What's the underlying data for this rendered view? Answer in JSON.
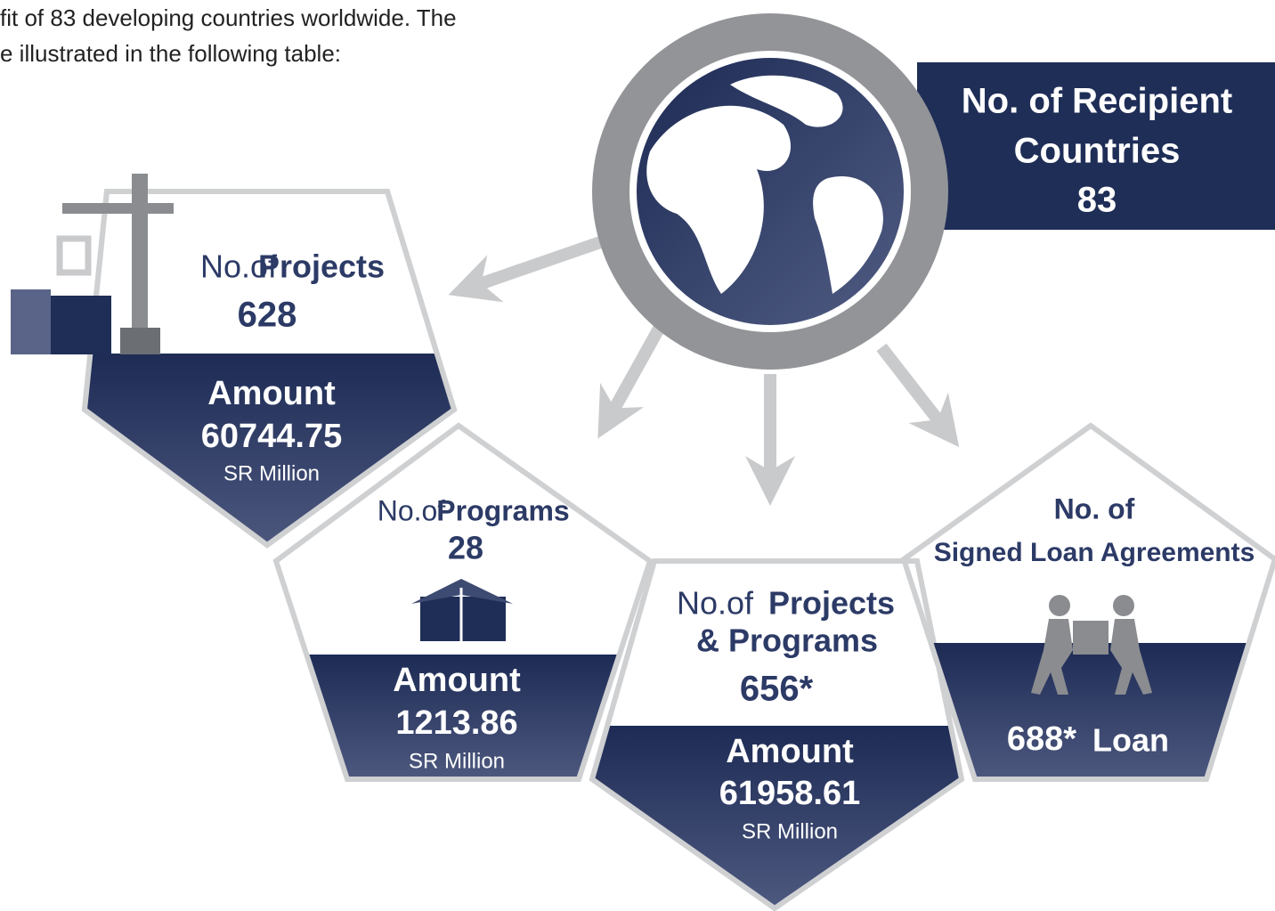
{
  "intro": {
    "lines": [
      "fit of 83 developing countries worldwide. The",
      "e illustrated in the following table:"
    ]
  },
  "recipient": {
    "label_lines": [
      "No. of Recipient",
      "Countries"
    ],
    "value": "83"
  },
  "projects": {
    "prefix": "No.of",
    "label": "Projects",
    "value": "628",
    "amount_label": "Amount",
    "amount": "60744.75",
    "unit": "SR Million"
  },
  "programs": {
    "prefix": "No.of",
    "label": "Programs",
    "value": "28",
    "amount_label": "Amount",
    "amount": "1213.86",
    "unit": "SR Million"
  },
  "combined": {
    "prefix": "No.of",
    "label": "Projects",
    "label2": "& Programs",
    "value": "656*",
    "amount_label": "Amount",
    "amount": "61958.61",
    "unit": "SR Million"
  },
  "loans": {
    "label_lines": [
      "No. of",
      "Signed Loan Agreements"
    ],
    "value": "688*",
    "unit": "Loan"
  }
}
